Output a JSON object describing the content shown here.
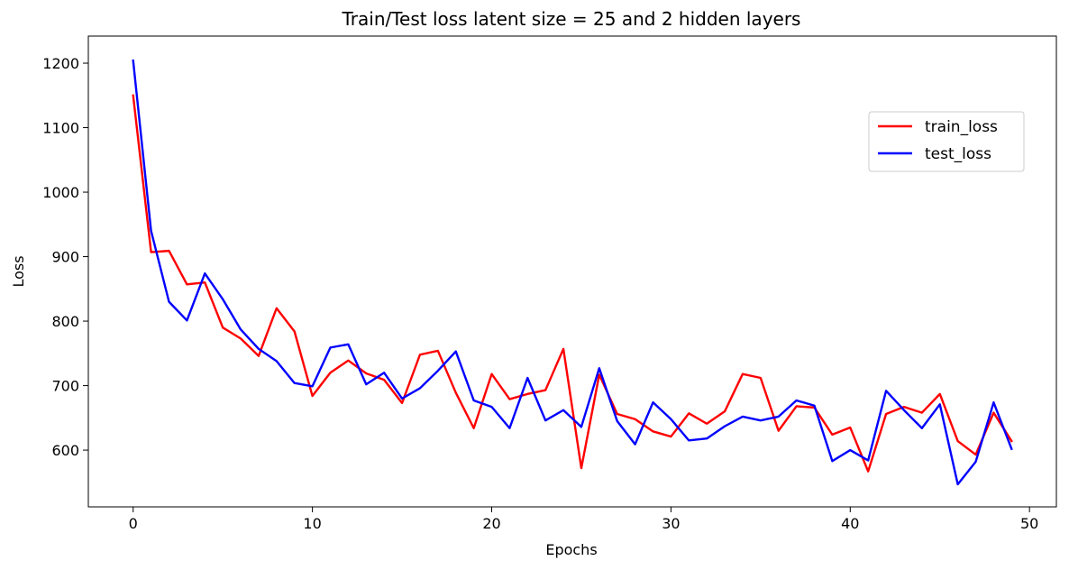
{
  "chart_data": {
    "type": "line",
    "title": "Train/Test loss latent size = 25 and 2 hidden layers",
    "xlabel": "Epochs",
    "ylabel": "Loss",
    "xlim": [
      -2.5,
      51.5
    ],
    "ylim": [
      512,
      1242
    ],
    "xticks": [
      0,
      10,
      20,
      30,
      40,
      50
    ],
    "yticks": [
      600,
      700,
      800,
      900,
      1000,
      1100,
      1200
    ],
    "grid": false,
    "legend_position": "upper-right",
    "x": [
      0,
      1,
      2,
      3,
      4,
      5,
      6,
      7,
      8,
      9,
      10,
      11,
      12,
      13,
      14,
      15,
      16,
      17,
      18,
      19,
      20,
      21,
      22,
      23,
      24,
      25,
      26,
      27,
      28,
      29,
      30,
      31,
      32,
      33,
      34,
      35,
      36,
      37,
      38,
      39,
      40,
      41,
      42,
      43,
      44,
      45,
      46,
      47,
      48,
      49
    ],
    "series": [
      {
        "name": "train_loss",
        "color": "#ff0000",
        "values": [
          1150,
          907,
          909,
          857,
          860,
          790,
          773,
          746,
          820,
          784,
          684,
          720,
          739,
          719,
          709,
          673,
          748,
          754,
          689,
          634,
          718,
          679,
          687,
          693,
          757,
          572,
          717,
          656,
          648,
          629,
          621,
          657,
          641,
          660,
          718,
          712,
          630,
          668,
          666,
          624,
          635,
          567,
          656,
          667,
          658,
          687,
          614,
          593,
          658,
          614
        ]
      },
      {
        "name": "test_loss",
        "color": "#0000ff",
        "values": [
          1204,
          940,
          830,
          801,
          874,
          834,
          787,
          757,
          738,
          704,
          699,
          759,
          764,
          702,
          720,
          680,
          696,
          723,
          753,
          677,
          667,
          634,
          712,
          646,
          662,
          636,
          727,
          645,
          609,
          674,
          648,
          615,
          618,
          637,
          652,
          646,
          652,
          677,
          669,
          583,
          600,
          584,
          692,
          662,
          634,
          671,
          547,
          582,
          674,
          602
        ]
      }
    ]
  }
}
